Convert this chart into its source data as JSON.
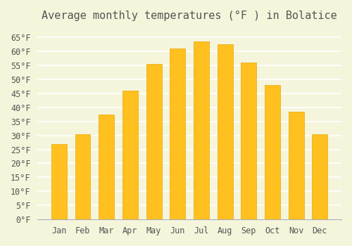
{
  "title": "Average monthly temperatures (°F ) in Bolatice",
  "months": [
    "Jan",
    "Feb",
    "Mar",
    "Apr",
    "May",
    "Jun",
    "Jul",
    "Aug",
    "Sep",
    "Oct",
    "Nov",
    "Dec"
  ],
  "values": [
    27,
    30.5,
    37.5,
    46,
    55.5,
    61,
    63.5,
    62.5,
    56,
    48,
    38.5,
    30.5
  ],
  "bar_color": "#FFC020",
  "bar_edge_color": "#E8A800",
  "background_color": "#F5F5DC",
  "grid_color": "#FFFFFF",
  "text_color": "#555555",
  "ylim": [
    0,
    68
  ],
  "yticks": [
    0,
    5,
    10,
    15,
    20,
    25,
    30,
    35,
    40,
    45,
    50,
    55,
    60,
    65
  ],
  "title_fontsize": 11,
  "tick_fontsize": 8.5,
  "figsize": [
    5.0,
    3.5
  ],
  "dpi": 100
}
